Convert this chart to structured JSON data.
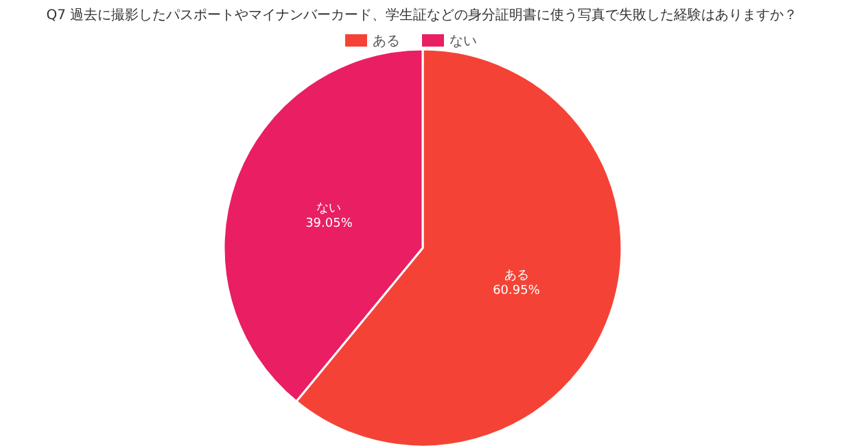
{
  "chart_data": {
    "type": "pie",
    "title": "Q7 過去に撮影したパスポートやマイナンバーカード、学生証などの身分証明書に使う写真で失敗した経験はありますか？",
    "categories": [
      "ある",
      "ない"
    ],
    "values": [
      60.95,
      39.05
    ],
    "value_labels": [
      "60.95%",
      "39.05%"
    ],
    "colors": [
      "#f44336",
      "#e91e63"
    ],
    "legend": "top"
  }
}
